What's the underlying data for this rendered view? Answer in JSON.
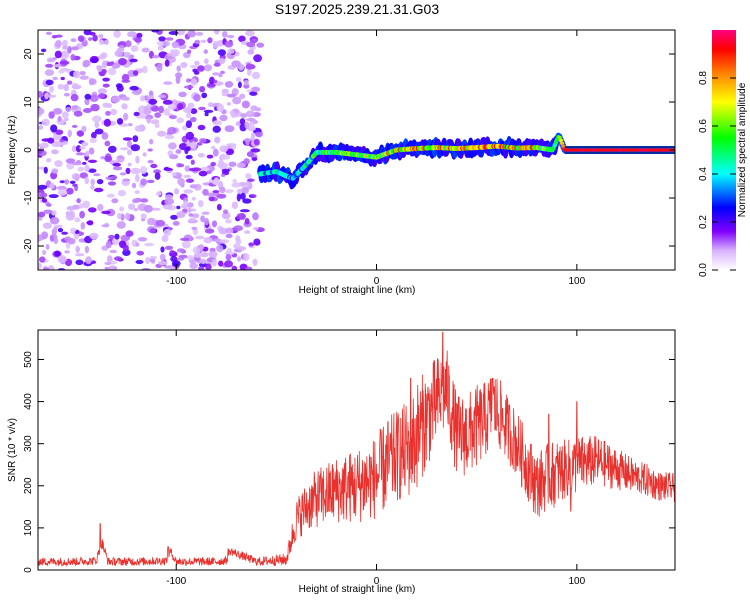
{
  "title": "S197.2025.239.21.31.G03",
  "colors": {
    "snr_line": "#e8302c",
    "frame": "#000000",
    "band": "#ee2020"
  },
  "chart_data": [
    {
      "type": "heatmap",
      "title": "S197.2025.239.21.31.G03",
      "xlabel": "Height of straight line (km)",
      "ylabel": "Frequency (Hz)",
      "xlim": [
        -169,
        149
      ],
      "ylim": [
        -25,
        25
      ],
      "x_ticks": [
        -100,
        0,
        100
      ],
      "y_ticks": [
        -20,
        -10,
        0,
        10,
        20
      ],
      "noise_region": {
        "x_range": [
          -169,
          -58
        ],
        "y_range": [
          -25,
          25
        ],
        "level": 0.3
      },
      "signal_trace": {
        "x": [
          -58,
          -50,
          -42,
          -35,
          -30,
          -20,
          -10,
          0,
          10,
          20,
          30,
          40,
          50,
          60,
          70,
          80,
          88,
          91,
          94,
          100,
          110,
          120,
          130,
          140,
          149
        ],
        "freq": [
          -5,
          -4.5,
          -6,
          -3,
          -0.5,
          -0.5,
          -1,
          -1.5,
          0,
          0.3,
          0.5,
          0.3,
          0.5,
          0.8,
          0.4,
          0.5,
          0,
          3,
          0,
          0,
          0,
          0,
          0,
          0,
          0
        ],
        "amplitude": [
          0.45,
          0.5,
          0.4,
          0.55,
          0.6,
          0.65,
          0.7,
          0.75,
          0.85,
          0.9,
          0.92,
          0.9,
          0.92,
          0.93,
          0.9,
          0.88,
          0.5,
          0.6,
          0.95,
          0.97,
          0.97,
          0.97,
          0.97,
          0.97,
          0.97
        ]
      },
      "colorbar": {
        "label": "Normalized spectral amplitude",
        "range": [
          0,
          1
        ],
        "ticks": [
          "0.0",
          "0.2",
          "0.4",
          "0.6",
          "0.8"
        ],
        "tick_values": [
          0,
          0.2,
          0.4,
          0.6,
          0.8
        ]
      }
    },
    {
      "type": "line",
      "xlabel": "Height of straight line (km)",
      "ylabel": "SNR (10 * v/v)",
      "xlim": [
        -169,
        149
      ],
      "ylim": [
        0,
        570
      ],
      "x_ticks": [
        -100,
        0,
        100
      ],
      "y_ticks": [
        0,
        100,
        200,
        300,
        400,
        500
      ],
      "series": [
        {
          "name": "SNR",
          "envelope_x": [
            -169,
            -150,
            -140,
            -137,
            -134,
            -120,
            -105,
            -103,
            -100,
            -80,
            -75,
            -73,
            -60,
            -45,
            -40,
            -35,
            -30,
            -20,
            -10,
            0,
            5,
            10,
            17,
            20,
            25,
            30,
            35,
            40,
            45,
            50,
            55,
            58,
            60,
            65,
            70,
            75,
            80,
            85,
            90,
            95,
            100,
            110,
            120,
            130,
            137,
            140,
            149
          ],
          "mean_y": [
            20,
            20,
            22,
            65,
            20,
            20,
            22,
            45,
            20,
            20,
            22,
            45,
            20,
            25,
            120,
            150,
            170,
            190,
            200,
            220,
            250,
            270,
            290,
            320,
            360,
            400,
            430,
            320,
            320,
            340,
            360,
            390,
            380,
            340,
            300,
            250,
            200,
            220,
            230,
            240,
            250,
            260,
            240,
            220,
            210,
            200,
            195
          ],
          "spread": [
            10,
            10,
            10,
            15,
            10,
            10,
            10,
            10,
            10,
            10,
            10,
            10,
            10,
            15,
            50,
            60,
            70,
            80,
            90,
            100,
            110,
            110,
            120,
            130,
            120,
            110,
            100,
            100,
            100,
            100,
            90,
            90,
            90,
            80,
            80,
            80,
            80,
            80,
            80,
            70,
            70,
            60,
            50,
            40,
            40,
            35,
            35
          ],
          "peaks": [
            [
              -138,
              110
            ],
            [
              -104,
              55
            ],
            [
              -74,
              50
            ],
            [
              17,
              455
            ],
            [
              33,
              565
            ],
            [
              58,
              455
            ],
            [
              100,
              400
            ],
            [
              86,
              370
            ],
            [
              97,
              140
            ]
          ]
        }
      ]
    }
  ]
}
